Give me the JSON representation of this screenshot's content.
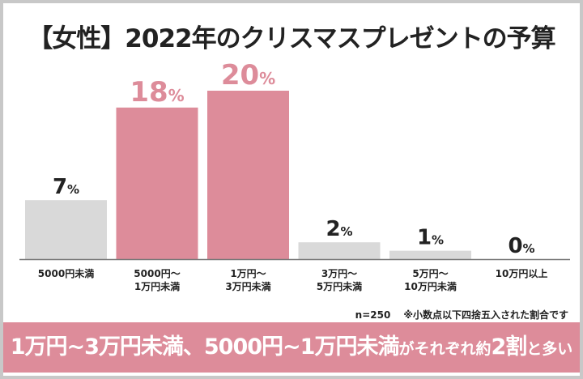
{
  "title": "【女性】2022年のクリスマスプレゼントの予算",
  "chart_data": {
    "type": "bar",
    "categories": [
      [
        "5000円未満"
      ],
      [
        "5000円〜",
        "1万円未満"
      ],
      [
        "1万円〜",
        "3万円未満"
      ],
      [
        "3万円〜",
        "5万円未満"
      ],
      [
        "5万円〜",
        "10万円未満"
      ],
      [
        "10万円以上"
      ]
    ],
    "values": [
      7,
      18,
      20,
      2,
      1,
      0
    ],
    "unit": "%",
    "highlight": [
      false,
      true,
      true,
      false,
      false,
      false
    ],
    "colors": {
      "normal": "#d9d9d9",
      "highlight": "#dd8c9a",
      "label_normal": "#222222",
      "label_highlight": "#dd8c9a"
    }
  },
  "note": {
    "n": "n=250",
    "rounding": "※小数点以下四捨五入された割合です"
  },
  "banner": {
    "part1": "1万円~3万円未満、5000円~1万円未満",
    "part2": "がそれぞれ約",
    "part3": "2割",
    "part4": "と多い"
  }
}
